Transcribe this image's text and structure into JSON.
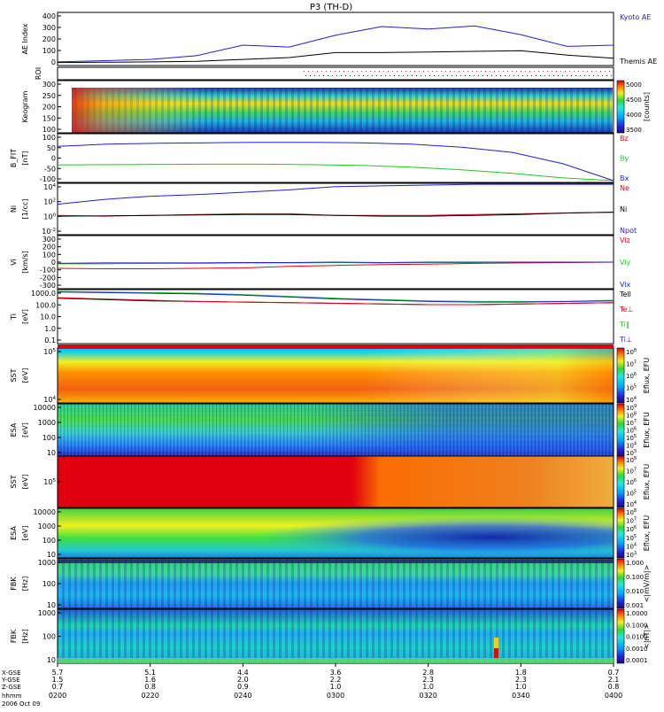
{
  "title": "P3 (TH-D)",
  "colors": {
    "red": "#e4001b",
    "green": "#22c322",
    "blue": "#1f1fd6",
    "black": "#000000"
  },
  "xaxis": {
    "tick_labels": [
      "0200",
      "0220",
      "0240",
      "0300",
      "0320",
      "0340",
      "0400"
    ],
    "rows": [
      {
        "name": "X-GSE",
        "label": "X-GSE",
        "values": [
          "5.7",
          "5.1",
          "4.4",
          "3.6",
          "2.8",
          "1.8",
          "0.7"
        ]
      },
      {
        "name": "Y-GSE",
        "label": "Y-GSE",
        "values": [
          "1.5",
          "1.6",
          "2.0",
          "2.2",
          "2.3",
          "2.3",
          "2.1"
        ]
      },
      {
        "name": "Z-GSE",
        "label": "Z-GSE",
        "values": [
          "0.7",
          "0.8",
          "0.9",
          "1.0",
          "1.0",
          "1.0",
          "0.8"
        ]
      }
    ],
    "hhmm_label": "hhmm",
    "date_label": "2006 Oct 09"
  },
  "chart_data": [
    {
      "id": "ae",
      "type": "line",
      "ylabel": "AE Index",
      "ylim": [
        0,
        400
      ],
      "ticks": [
        "400",
        "300",
        "200",
        "100",
        "0"
      ],
      "x": [
        0,
        10,
        20,
        30,
        40,
        50,
        60,
        70,
        80,
        90,
        100,
        110,
        120
      ],
      "series": [
        {
          "name": "Kyoto AE",
          "color": "blue",
          "values": [
            15,
            25,
            35,
            65,
            150,
            135,
            230,
            300,
            280,
            305,
            235,
            140,
            150
          ]
        },
        {
          "name": "Themis AE",
          "color": "black",
          "values": [
            10,
            12,
            15,
            20,
            35,
            50,
            90,
            90,
            95,
            100,
            105,
            70,
            45
          ]
        }
      ]
    },
    {
      "id": "roi",
      "type": "line",
      "ylabel": "ROI"
    },
    {
      "id": "keogram",
      "type": "heatmap",
      "ylabel": "Keogram",
      "ylim": [
        100,
        300
      ],
      "ticks": [
        "300",
        "250",
        "200",
        "150",
        "100"
      ],
      "colorbar": {
        "ticks": [
          "5000",
          "4500",
          "4000",
          "3500"
        ],
        "label": "[counts]"
      }
    },
    {
      "id": "bfield",
      "type": "line",
      "ylabel": "B_FIT",
      "unit": "[nT]",
      "ylim": [
        -100,
        100
      ],
      "ticks": [
        "100",
        "50",
        "0",
        "-50",
        "-100"
      ],
      "x": [
        0,
        10,
        20,
        30,
        40,
        50,
        60,
        70,
        80,
        90,
        100,
        110
      ],
      "series": [
        {
          "name": "Bz",
          "color": "red",
          "values": [
            null,
            null,
            null,
            null,
            null,
            null,
            null,
            null,
            null,
            null,
            null,
            null
          ]
        },
        {
          "name": "By",
          "color": "green",
          "values": [
            -30,
            -29,
            -28,
            -27,
            -27,
            -29,
            -32,
            -40,
            -52,
            -68,
            -88,
            -100
          ]
        },
        {
          "name": "Bx",
          "color": "blue",
          "values": [
            52,
            62,
            66,
            68,
            70,
            70,
            68,
            62,
            48,
            25,
            -25,
            -100
          ]
        }
      ]
    },
    {
      "id": "density",
      "type": "line",
      "ylabel": "Ni",
      "unit": "[1/cc]",
      "yscale": "log",
      "ylim": [
        -2,
        4
      ],
      "ticks": [
        "10^4",
        "10^2",
        "10^0",
        "10^-2"
      ],
      "x": [
        0,
        10,
        20,
        30,
        40,
        50,
        60,
        70,
        80,
        90,
        100,
        110,
        120
      ],
      "series": [
        {
          "name": "Ne",
          "color": "red",
          "values": [
            0.2,
            0.1,
            0.2,
            0.3,
            0.4,
            0.4,
            0.2,
            0.2,
            0.2,
            0.3,
            0.4,
            0.5,
            0.6
          ]
        },
        {
          "name": "Ni",
          "color": "black",
          "values": [
            0.1,
            0.15,
            0.2,
            0.25,
            0.3,
            0.3,
            0.2,
            0.1,
            0.1,
            0.2,
            0.3,
            0.5,
            0.6
          ]
        },
        {
          "name": "Npot",
          "color": "blue",
          "values": [
            1.6,
            2.2,
            2.6,
            2.8,
            3.1,
            3.4,
            3.8,
            3.9,
            4.0,
            4.1,
            4.1,
            4.1,
            4.1
          ]
        }
      ]
    },
    {
      "id": "velocity",
      "type": "line",
      "ylabel": "Vi",
      "unit": "[km/s]",
      "ylim": [
        -300,
        300
      ],
      "ticks": [
        "300",
        "200",
        "100",
        "0",
        "-100",
        "-200",
        "-300"
      ],
      "x": [
        0,
        10,
        20,
        30,
        40,
        50,
        60,
        70,
        80,
        90,
        100,
        110,
        120
      ],
      "series": [
        {
          "name": "Viz",
          "color": "red",
          "values": [
            -75,
            -80,
            -80,
            -75,
            -70,
            -50,
            -40,
            -30,
            -25,
            -15,
            -10,
            -5,
            0
          ]
        },
        {
          "name": "Viy",
          "color": "green",
          "values": [
            -20,
            -20,
            -15,
            -15,
            -10,
            -10,
            -5,
            -10,
            -5,
            -5,
            0,
            0,
            0
          ]
        },
        {
          "name": "Vix",
          "color": "blue",
          "values": [
            -15,
            -10,
            -10,
            -10,
            -5,
            -5,
            0,
            -5,
            0,
            0,
            0,
            0,
            0
          ]
        }
      ]
    },
    {
      "id": "temperature",
      "type": "line",
      "ylabel": "Ti",
      "unit": "[eV]",
      "yscale": "log",
      "ylim": [
        -1,
        3
      ],
      "ticks": [
        "1000.0",
        "100.0",
        "10.0",
        "1.0",
        "0.1"
      ],
      "x": [
        0,
        10,
        20,
        30,
        40,
        50,
        60,
        70,
        80,
        90,
        100,
        110,
        120
      ],
      "series": [
        {
          "name": "Tell",
          "color": "black",
          "values": [
            2.45,
            2.35,
            2.25,
            2.2,
            2.15,
            2.1,
            2.05,
            2.0,
            1.95,
            1.95,
            2.0,
            2.05,
            2.1
          ]
        },
        {
          "name": "Te⊥",
          "color": "red",
          "values": [
            2.5,
            2.4,
            2.3,
            2.2,
            2.15,
            2.1,
            2.05,
            2.0,
            1.95,
            1.95,
            2.0,
            2.05,
            2.1
          ]
        },
        {
          "name": "Ti‖",
          "color": "green",
          "values": [
            3.0,
            2.95,
            2.9,
            2.85,
            2.75,
            2.6,
            2.45,
            2.35,
            2.25,
            2.2,
            2.2,
            2.2,
            2.3
          ]
        },
        {
          "name": "Ti⊥",
          "color": "blue",
          "values": [
            2.95,
            2.9,
            2.85,
            2.8,
            2.7,
            2.55,
            2.4,
            2.3,
            2.2,
            2.15,
            2.15,
            2.2,
            2.25
          ]
        }
      ]
    },
    {
      "id": "sst_e",
      "type": "heatmap",
      "ylabel": "SST",
      "unit": "[eV]",
      "ticks": [
        "10^5",
        "10^4"
      ],
      "colorbar": {
        "ticks": [
          "10^8",
          "10^7",
          "10^6",
          "10^5",
          "10^4"
        ],
        "label": "Eflux, EFU"
      }
    },
    {
      "id": "esa_e",
      "type": "heatmap",
      "ylabel": "ESA",
      "unit": "[eV]",
      "ticks": [
        "10000",
        "1000",
        "100",
        "10"
      ],
      "colorbar": {
        "ticks": [
          "10^9",
          "10^8",
          "10^7",
          "10^6",
          "10^5",
          "10^4",
          "10^3"
        ],
        "label": "Eflux, EFU"
      }
    },
    {
      "id": "sst_i",
      "type": "heatmap",
      "ylabel": "SST",
      "unit": "[eV]",
      "ticks": [
        "10^5"
      ],
      "colorbar": {
        "ticks": [
          "10^8",
          "10^7",
          "10^6",
          "10^5",
          "10^4"
        ],
        "label": "Eflux, EFU"
      }
    },
    {
      "id": "esa_i",
      "type": "heatmap",
      "ylabel": "ESA",
      "unit": "[eV]",
      "ticks": [
        "10000",
        "1000",
        "100",
        "10"
      ],
      "colorbar": {
        "ticks": [
          "10^8",
          "10^7",
          "10^6",
          "10^5",
          "10^4",
          "10^3"
        ],
        "label": "Eflux, EFU"
      }
    },
    {
      "id": "fbk_e",
      "type": "heatmap",
      "ylabel": "FBK",
      "unit": "[Hz]",
      "ticks": [
        "1000",
        "100",
        "10"
      ],
      "colorbar": {
        "ticks": [
          "1.000",
          "0.100",
          "0.010",
          "0.001"
        ],
        "label": "<|mV/m|>"
      }
    },
    {
      "id": "fbk_b",
      "type": "heatmap",
      "ylabel": "FBK",
      "unit": "[Hz]",
      "ticks": [
        "1000",
        "100",
        "10"
      ],
      "colorbar": {
        "ticks": [
          "1.0000",
          "0.1000",
          "0.0100",
          "0.0010",
          "0.0001"
        ],
        "label": "<|nT|>"
      }
    }
  ]
}
